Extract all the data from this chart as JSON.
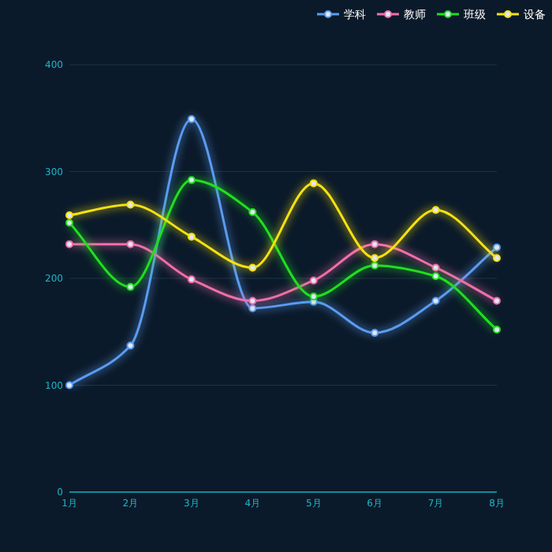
{
  "chart_data": {
    "type": "line",
    "categories": [
      "1月",
      "2月",
      "3月",
      "4月",
      "5月",
      "6月",
      "7月",
      "8月"
    ],
    "series": [
      {
        "name": "学科",
        "color": "#5b9bf0",
        "values": [
          100,
          137,
          349,
          172,
          178,
          149,
          179,
          229
        ]
      },
      {
        "name": "教师",
        "color": "#ef6fa8",
        "values": [
          232,
          232,
          199,
          179,
          198,
          232,
          210,
          179
        ]
      },
      {
        "name": "班级",
        "color": "#22dd22",
        "values": [
          252,
          192,
          292,
          262,
          183,
          212,
          202,
          152
        ]
      },
      {
        "name": "设备",
        "color": "#f5e10f",
        "values": [
          259,
          269,
          239,
          210,
          289,
          219,
          264,
          219
        ]
      }
    ],
    "ylim": [
      0,
      400
    ],
    "yticks": [
      0,
      100,
      200,
      300,
      400
    ],
    "grid": "y",
    "legend": "top right",
    "marker": "circle",
    "line_style": "solid"
  }
}
